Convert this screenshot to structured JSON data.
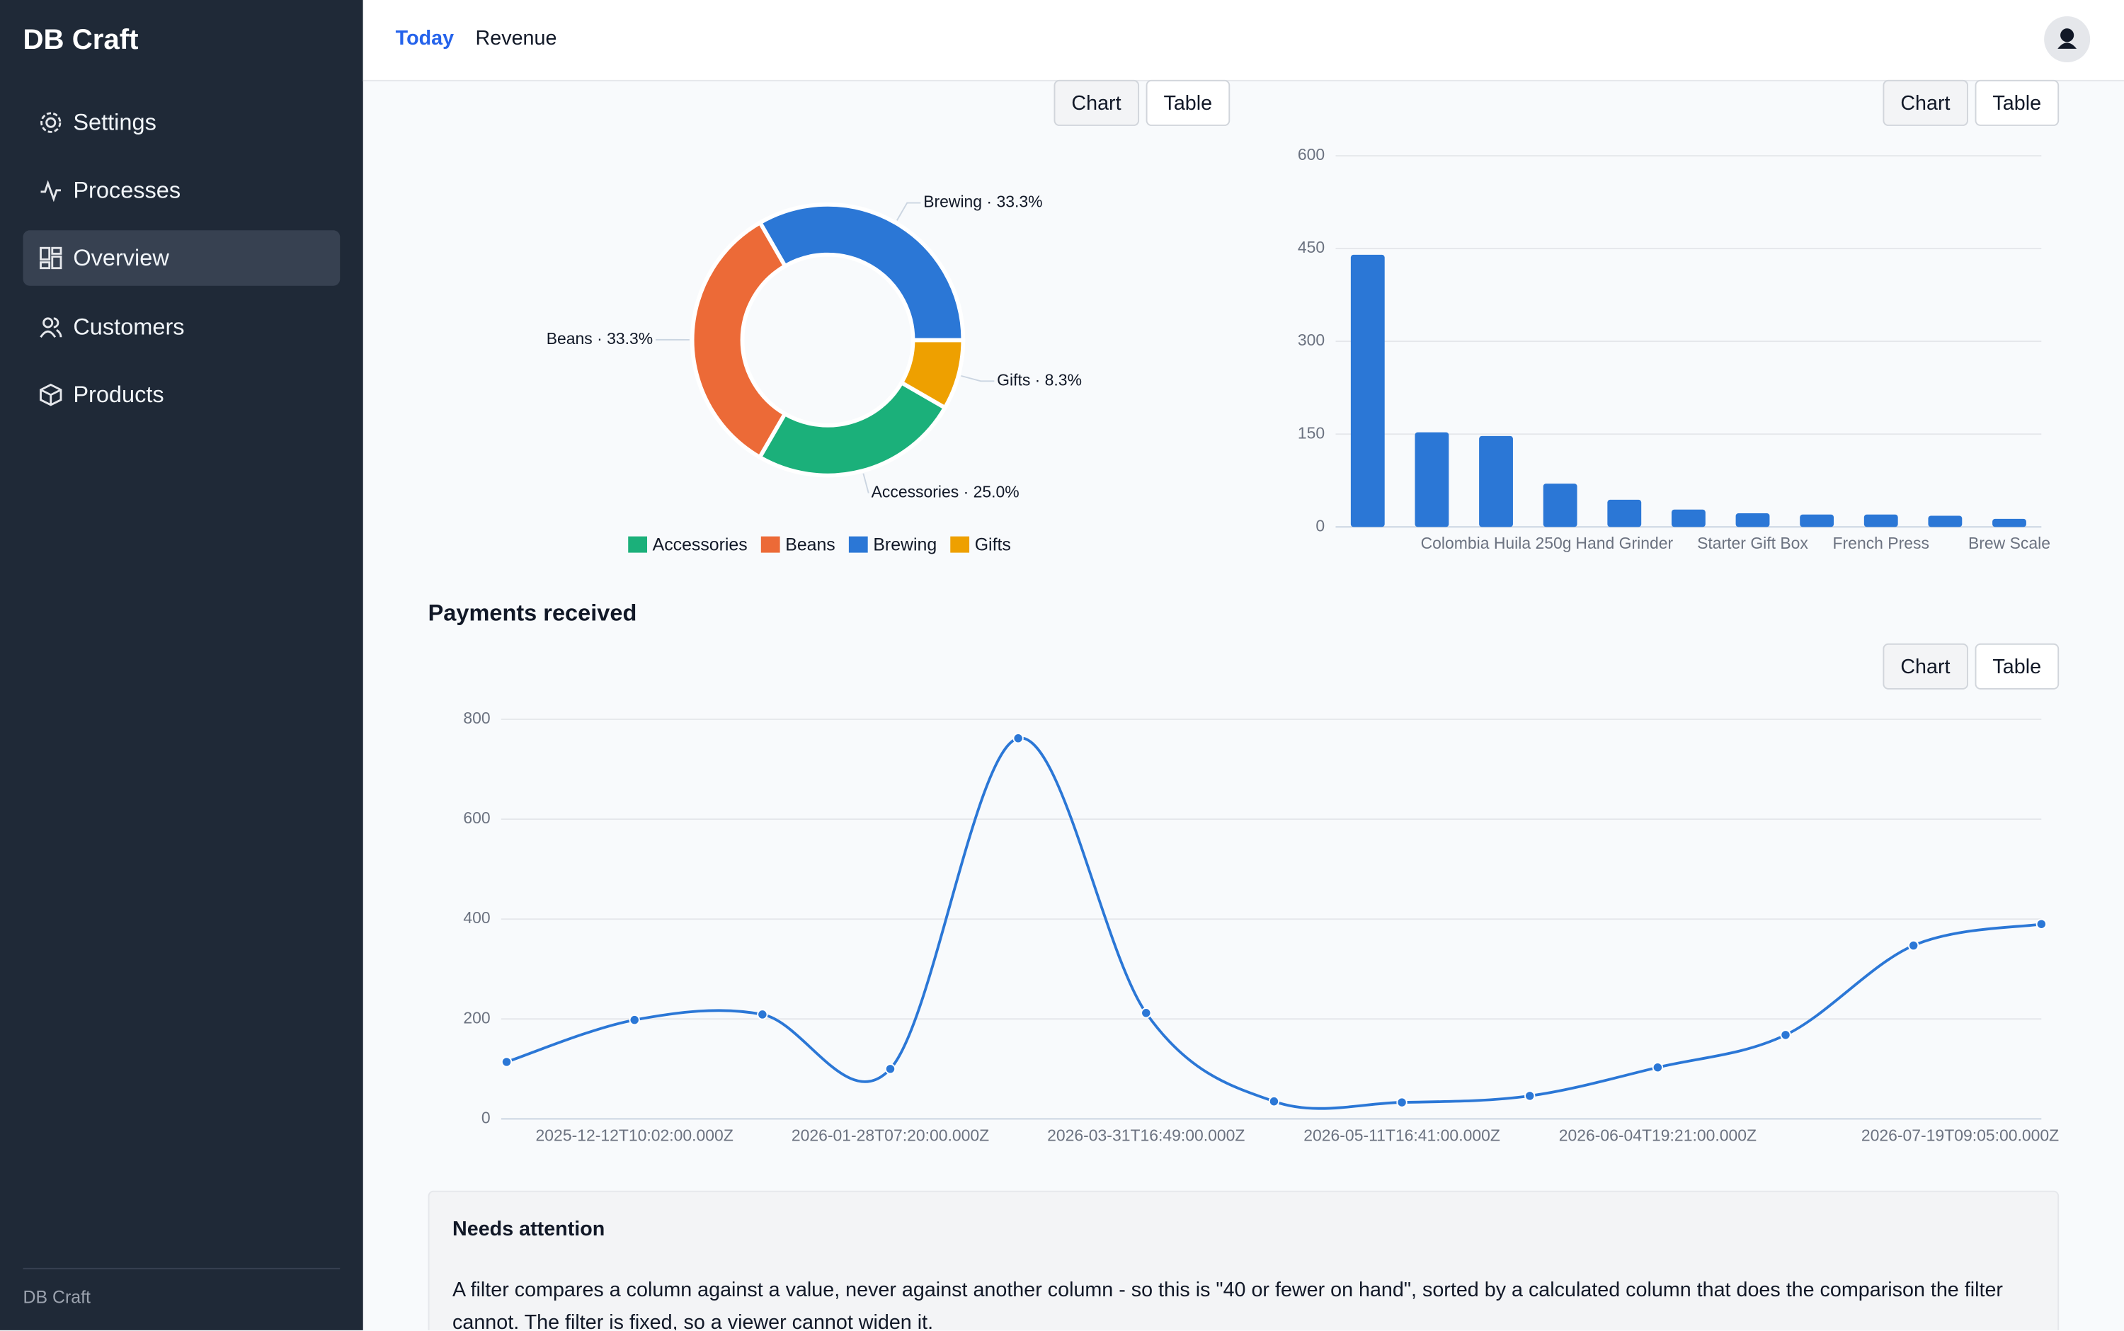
{
  "sidebar": {
    "brand": "DB Craft",
    "nav": [
      "Settings",
      "Processes",
      "Overview",
      "Customers",
      "Products"
    ],
    "active": 2,
    "footer": "DB Craft"
  },
  "topbar": {
    "tabs": [
      "Today",
      "Revenue"
    ],
    "active": 0
  },
  "view_toggle": [
    "Chart",
    "Table"
  ],
  "section_title": "Payments received",
  "chart_data": [
    {
      "type": "pie",
      "categories": [
        "Accessories",
        "Beans",
        "Brewing",
        "Gifts"
      ],
      "values": [
        25,
        33.3,
        33.3,
        8.3
      ],
      "value_labels": [
        "Accessories · 25.0%",
        "Beans · 33.3%",
        "Brewing · 33.3%",
        "Gifts · 8.3%"
      ],
      "colors": [
        "#1bb07a",
        "#ec6a37",
        "#2b77d6",
        "#eea000"
      ],
      "legend": "bottom"
    },
    {
      "type": "bar",
      "categories": [
        null,
        null,
        "Colombia Huila 250g",
        null,
        "Hand Grinder",
        null,
        "Starter Gift Box",
        null,
        "French Press",
        null,
        "Brew Scale"
      ],
      "values": [
        440,
        153,
        147,
        70,
        44,
        28,
        22,
        20,
        20,
        18,
        13
      ],
      "color": "#2b77d6",
      "ylim": [
        0,
        600
      ],
      "yticks": [
        0,
        150,
        300,
        450,
        600
      ],
      "grid": true
    },
    {
      "type": "line",
      "categories": [
        null,
        "2025-12-12T10:02:00.000Z",
        null,
        "2026-01-28T07:20:00.000Z",
        null,
        "2026-03-31T16:49:00.000Z",
        null,
        "2026-05-11T16:41:00.000Z",
        null,
        "2026-06-04T19:21:00.000Z",
        null,
        null,
        "2026-07-19T09:05:00.000Z"
      ],
      "values": [
        114,
        198,
        209,
        100,
        762,
        212,
        35,
        33,
        46,
        103,
        168,
        347,
        390
      ],
      "color": "#2b77d6",
      "ylim": [
        0,
        800
      ],
      "yticks": [
        0,
        200,
        400,
        600,
        800
      ],
      "grid": true,
      "smooth": true
    }
  ],
  "notice": {
    "title": "Needs attention",
    "text": "A filter compares a column against a value, never against another column - so this is \"40 or fewer on hand\", sorted by a calculated column that does the comparison the filter cannot. The filter is fixed, so a viewer cannot widen it."
  }
}
